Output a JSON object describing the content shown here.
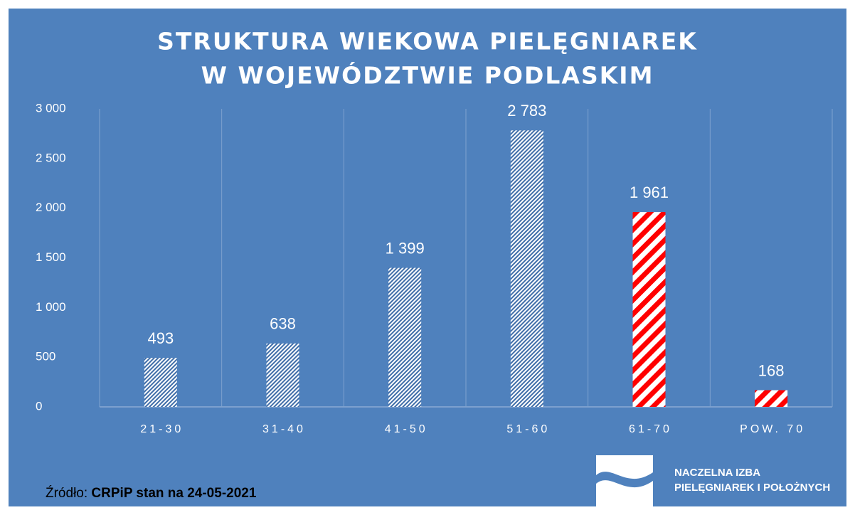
{
  "chart_data": {
    "type": "bar",
    "title": [
      "STRUKTURA WIEKOWA PIELĘGNIAREK",
      "W WOJEWÓDZTWIE PODLASKIM"
    ],
    "categories": [
      "21-30",
      "31-40",
      "41-50",
      "51-60",
      "61-70",
      "POW. 70"
    ],
    "values": [
      493,
      638,
      1399,
      2783,
      1961,
      168
    ],
    "value_labels": [
      "493",
      "638",
      "1 399",
      "2 783",
      "1 961",
      "168"
    ],
    "colors": [
      "#3f6da8",
      "#3f6da8",
      "#3f6da8",
      "#3f6da8",
      "#ff0000",
      "#ff0000"
    ],
    "ylim": [
      0,
      3000
    ],
    "yticks": [
      0,
      500,
      {
        "value": 1000,
        "label": "1 000"
      },
      {
        "value": 1500,
        "label": "1 500"
      },
      {
        "value": 2000,
        "label": "2 000"
      },
      {
        "value": 2500,
        "label": "2 500"
      },
      {
        "value": 3000,
        "label": "3 000"
      }
    ],
    "grid": true,
    "source_label": "Źródło:",
    "source": "CRPiP stan na 24-05-2021"
  },
  "logo": [
    "NACZELNA IZBA",
    "PIELĘGNIAREK I POŁOŻNYCH"
  ]
}
